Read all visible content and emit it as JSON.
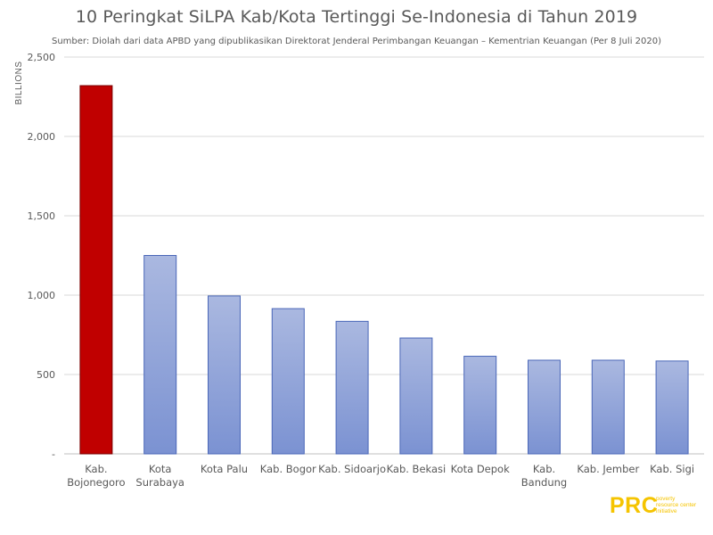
{
  "chart_data": {
    "type": "bar",
    "title": "10 Peringkat SiLPA Kab/Kota Tertinggi Se-Indonesia di Tahun 2019",
    "subtitle": "Sumber: Diolah dari data APBD yang dipublikasikan Direktorat Jenderal Perimbangan Keuangan – Kementrian Keuangan (Per 8 Juli 2020)",
    "ylabel": "BILLIONS",
    "xlabel": "",
    "ylim": [
      0,
      2500
    ],
    "yticks": [
      {
        "value": 0,
        "label": "-"
      },
      {
        "value": 500,
        "label": "500"
      },
      {
        "value": 1000,
        "label": "1,000"
      },
      {
        "value": 1500,
        "label": "1,500"
      },
      {
        "value": 2000,
        "label": "2,000"
      },
      {
        "value": 2500,
        "label": "2,500"
      }
    ],
    "grid": true,
    "categories": [
      [
        "Kab.",
        "Bojonegoro"
      ],
      [
        "Kota",
        "Surabaya"
      ],
      [
        "Kota Palu"
      ],
      [
        "Kab. Bogor"
      ],
      [
        "Kab. Sidoarjo"
      ],
      [
        "Kab. Bekasi"
      ],
      [
        "Kota Depok"
      ],
      [
        "Kab.",
        "Bandung"
      ],
      [
        "Kab. Jember"
      ],
      [
        "Kab. Sigi"
      ]
    ],
    "values": [
      2320,
      1250,
      995,
      915,
      835,
      730,
      615,
      590,
      590,
      585
    ],
    "colors": {
      "highlight_fill": "#c00000",
      "highlight_stroke": "#7a0000",
      "bar_top": "#aab8e0",
      "bar_bottom": "#7b92d2",
      "bar_stroke": "#4a67b8",
      "grid": "#d9d9d9",
      "axis": "#bfbfbf"
    }
  },
  "logo": {
    "mark": "PRC",
    "lines": [
      "poverty",
      "resource center",
      "initiative"
    ]
  }
}
